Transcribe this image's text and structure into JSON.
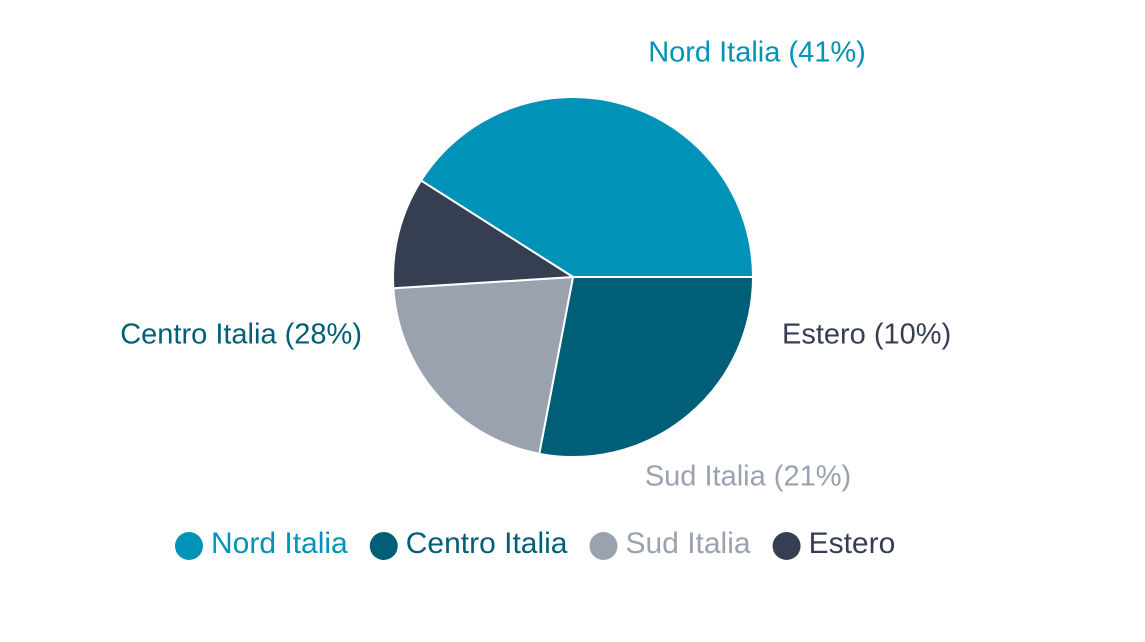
{
  "chart_data": {
    "type": "pie",
    "title": "",
    "categories": [
      "Nord Italia",
      "Centro Italia",
      "Sud Italia",
      "Estero"
    ],
    "values": [
      41,
      28,
      21,
      10
    ],
    "unit": "%",
    "slice_labels": [
      "Nord Italia (41%)",
      "Centro Italia (28%)",
      "Sud Italia (21%)",
      "Estero (10%)"
    ],
    "colors": [
      "#0193b7",
      "#005f77",
      "#99a2ae",
      "#353f51"
    ],
    "legend": {
      "placement": "bottom",
      "entries": [
        "Nord Italia",
        "Centro Italia",
        "Sud Italia",
        "Estero"
      ]
    }
  }
}
